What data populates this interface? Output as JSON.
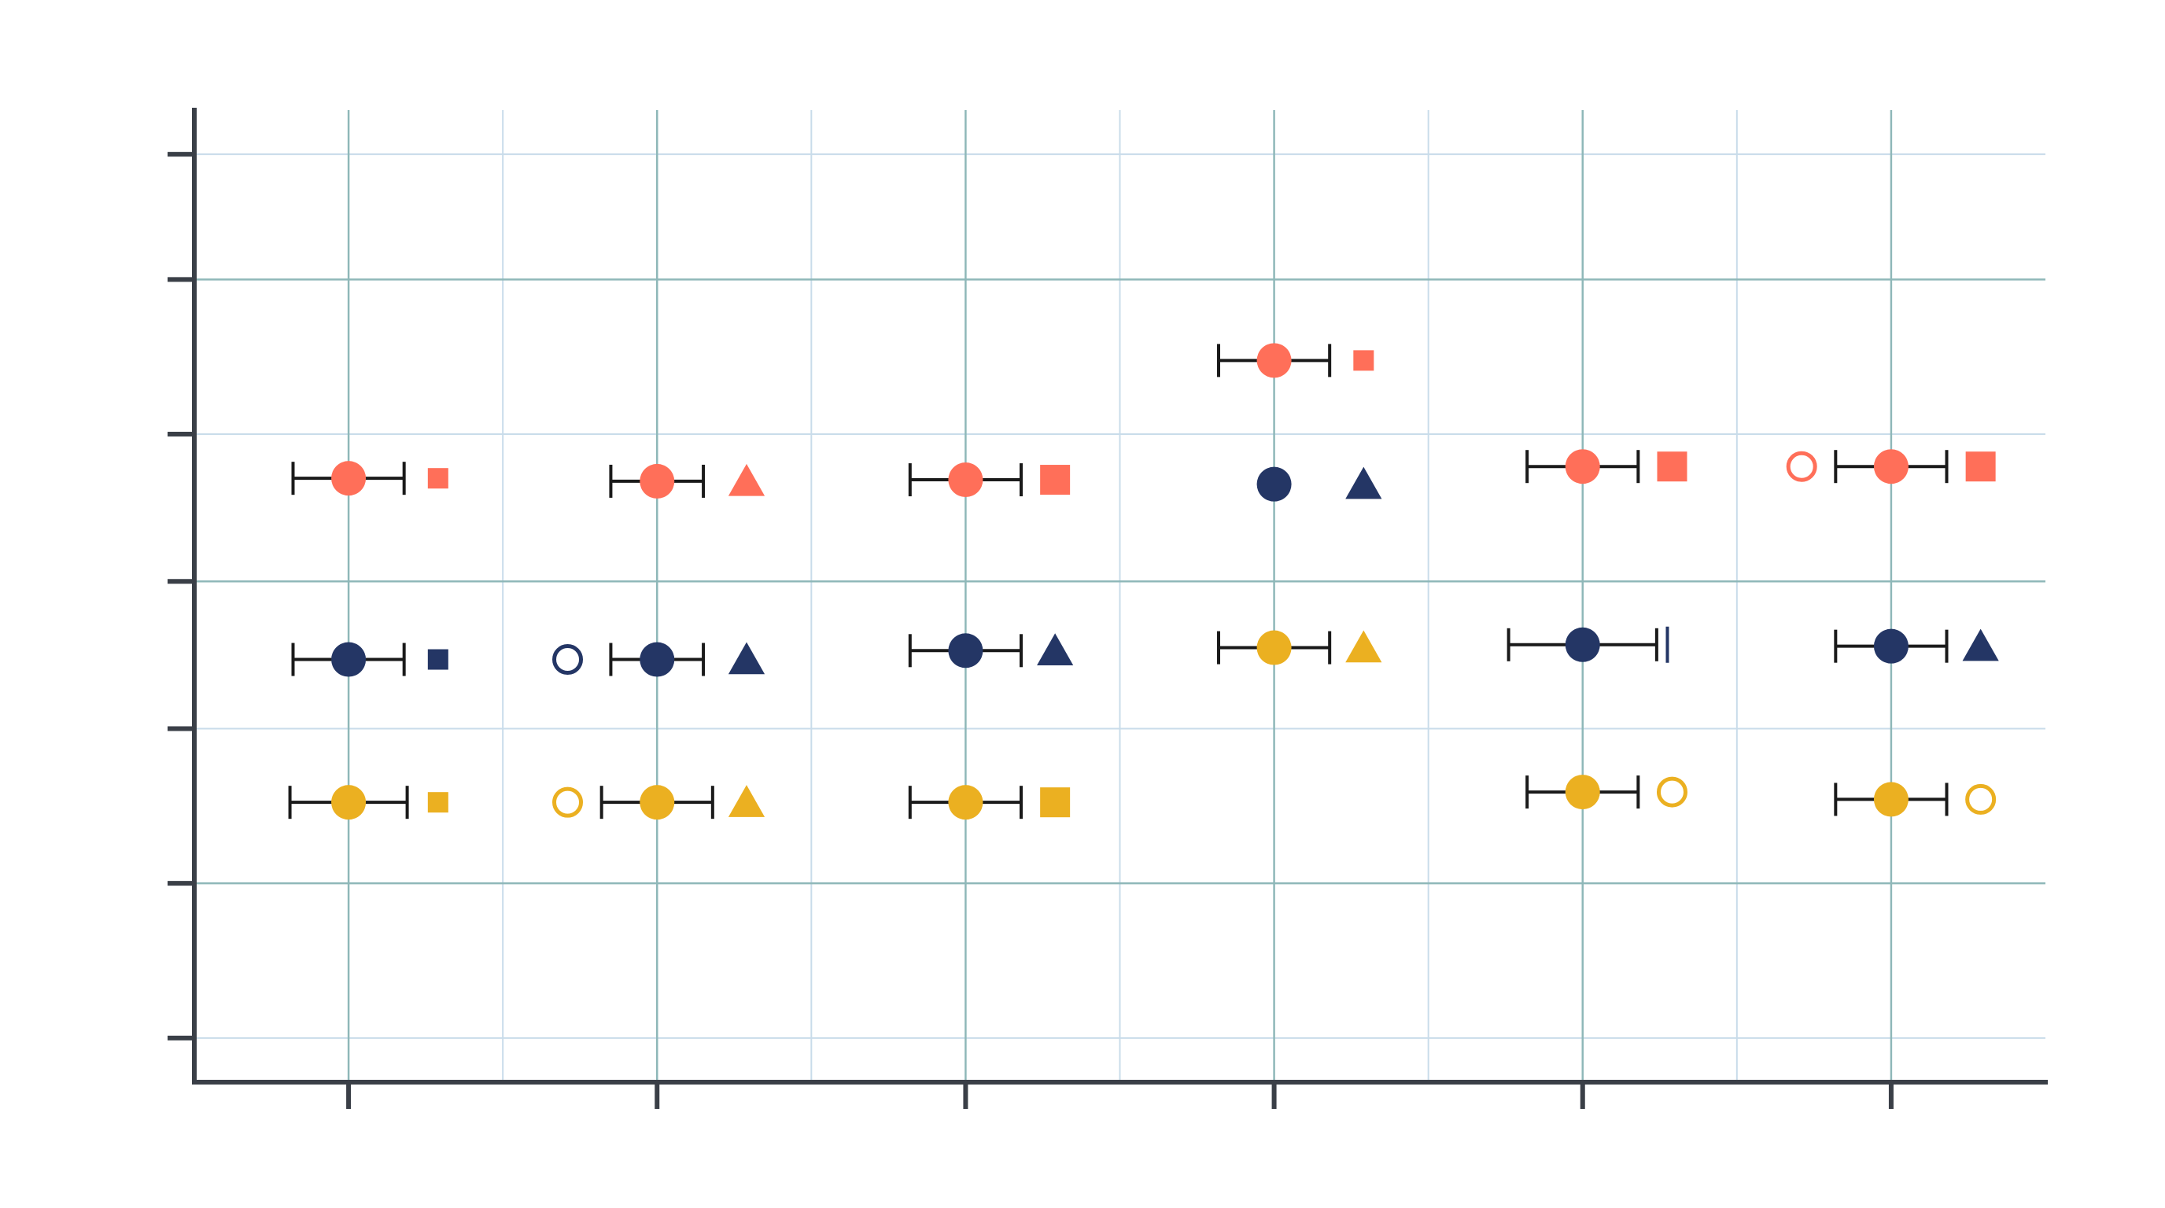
{
  "chart_data": {
    "type": "scatter",
    "title": "",
    "xlabel": "",
    "ylabel": "",
    "x_categories": [
      1,
      2,
      3,
      4,
      5,
      6
    ],
    "xlim": [
      0.5,
      6.5
    ],
    "ylim": [
      0.0,
      6.6
    ],
    "x_ticks": [
      1,
      2,
      3,
      4,
      5,
      6
    ],
    "x_minor_ticks": [
      1.5,
      2.5,
      3.5,
      4.5,
      5.5
    ],
    "y_ticks": [
      0.3,
      1.35,
      2.4,
      3.4,
      4.4,
      5.45,
      6.3
    ],
    "y_major_grid": [
      1.35,
      3.4,
      5.45
    ],
    "y_minor_grid": [
      0.3,
      2.4,
      4.4,
      6.3
    ],
    "tick_labels_visible": false,
    "grid": true,
    "legend": "none",
    "colors": {
      "coral": "#FF6F59",
      "navy": "#243665",
      "gold": "#EBB021",
      "axis": "#3A3F47",
      "grid_major": "#8FB8B9",
      "grid_minor": "#C9DCEA",
      "errorbar": "#1A1A1A"
    },
    "series": [
      {
        "color": "coral",
        "points": [
          {
            "x": 1,
            "y": 4.1,
            "err": 0.18,
            "marker": "square",
            "marker_size": "small"
          },
          {
            "x": 2,
            "y": 4.08,
            "err": 0.15,
            "marker": "triangle",
            "marker_size": "large"
          },
          {
            "x": 3,
            "y": 4.09,
            "err": 0.18,
            "marker": "square",
            "marker_size": "large"
          },
          {
            "x": 4,
            "y": 4.9,
            "err": 0.18,
            "marker": "square",
            "marker_size": "small"
          },
          {
            "x": 5,
            "y": 4.18,
            "err": 0.18,
            "marker": "square",
            "marker_size": "large"
          },
          {
            "x": 6,
            "y": 4.18,
            "err": 0.18,
            "marker": "square",
            "marker_size": "large",
            "outlier": true
          }
        ]
      },
      {
        "color": "navy",
        "points": [
          {
            "x": 1,
            "y": 2.87,
            "err": 0.18,
            "marker": "square",
            "marker_size": "small"
          },
          {
            "x": 2,
            "y": 2.87,
            "err": 0.15,
            "marker": "triangle",
            "marker_size": "large",
            "outlier": true
          },
          {
            "x": 3,
            "y": 2.93,
            "err": 0.18,
            "marker": "triangle",
            "marker_size": "large"
          },
          {
            "x": 4,
            "y": 4.06,
            "err": 0.0,
            "marker": "triangle",
            "marker_size": "large"
          },
          {
            "x": 5,
            "y": 2.97,
            "err": 0.24,
            "marker": "line",
            "marker_size": "large"
          },
          {
            "x": 6,
            "y": 2.96,
            "err": 0.18,
            "marker": "triangle",
            "marker_size": "large"
          }
        ]
      },
      {
        "color": "gold",
        "points": [
          {
            "x": 1,
            "y": 1.9,
            "err": 0.19,
            "marker": "square",
            "marker_size": "small"
          },
          {
            "x": 2,
            "y": 1.9,
            "err": 0.18,
            "marker": "triangle",
            "marker_size": "large",
            "outlier": true
          },
          {
            "x": 3,
            "y": 1.9,
            "err": 0.18,
            "marker": "square",
            "marker_size": "large"
          },
          {
            "x": 4,
            "y": 2.95,
            "err": 0.18,
            "marker": "triangle",
            "marker_size": "large"
          },
          {
            "x": 5,
            "y": 1.97,
            "err": 0.18,
            "marker": "open-circle",
            "marker_size": "large"
          },
          {
            "x": 6,
            "y": 1.92,
            "err": 0.18,
            "marker": "open-circle",
            "marker_size": "large"
          }
        ]
      }
    ]
  }
}
